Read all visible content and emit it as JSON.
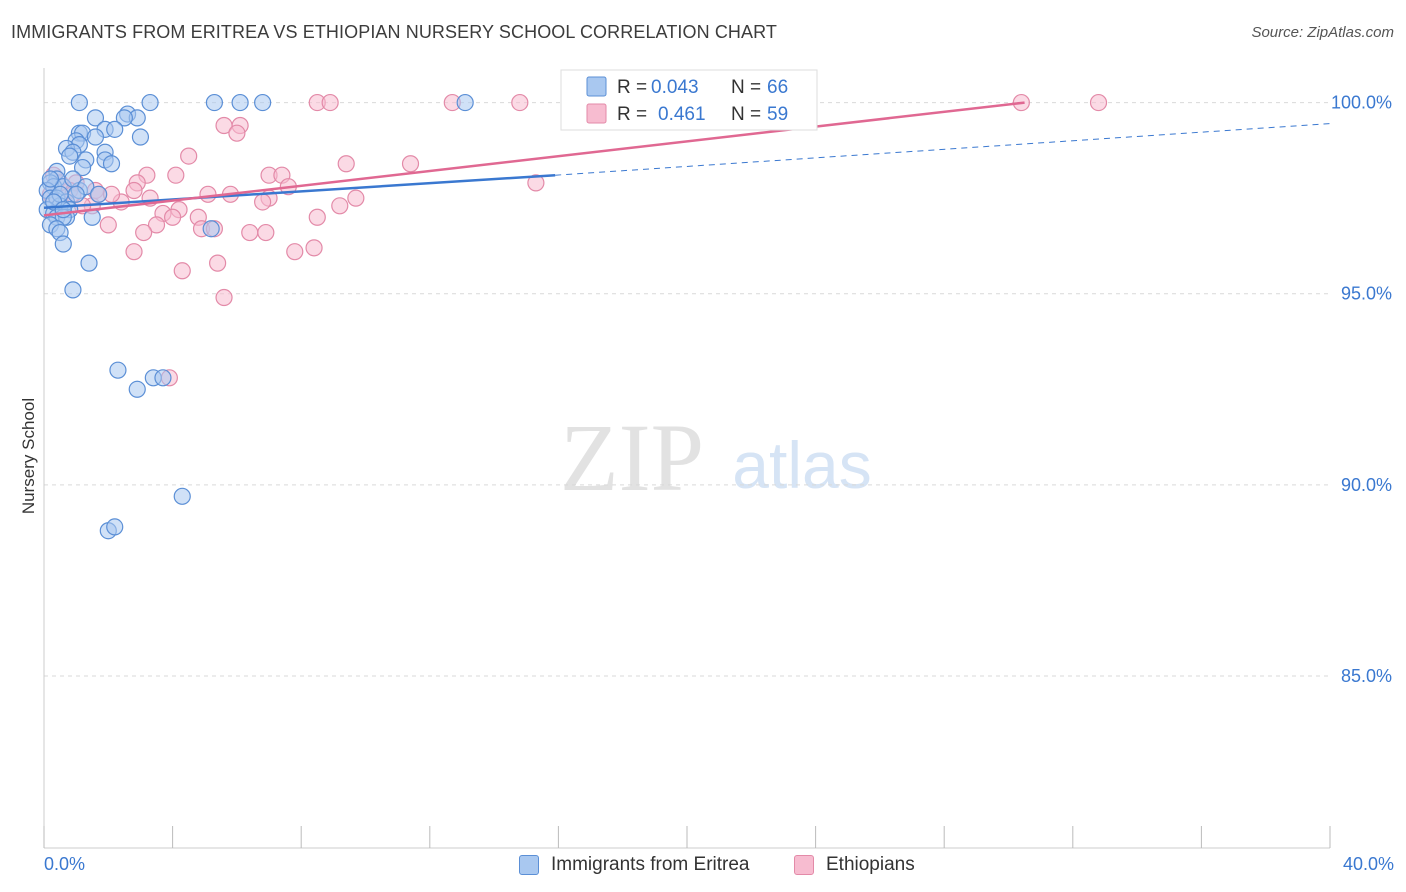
{
  "header": {
    "title": "IMMIGRANTS FROM ERITREA VS ETHIOPIAN NURSERY SCHOOL CORRELATION CHART",
    "source": "Source: ZipAtlas.com"
  },
  "watermark": {
    "zip": "ZIP",
    "atlas": "atlas"
  },
  "colors": {
    "blue_fill": "#a9c8f0",
    "blue_stroke": "#5b8fd6",
    "blue_line": "#3a78d0",
    "pink_fill": "#f7bcd0",
    "pink_stroke": "#e38aa8",
    "pink_line": "#e06892",
    "tick_label": "#3a78d0",
    "grid": "#d9d9d9"
  },
  "stats": [
    {
      "r_label": "R = ",
      "r_value": "0.043",
      "n_label": "N = ",
      "n_value": "66"
    },
    {
      "r_label": "R = ",
      "r_value": "0.461",
      "n_label": "N = ",
      "n_value": "59"
    }
  ],
  "chart_data": {
    "type": "scatter",
    "title": "IMMIGRANTS FROM ERITREA VS ETHIOPIAN NURSERY SCHOOL CORRELATION CHART",
    "xlabel": "",
    "ylabel": "Nursery School",
    "xlim": [
      0,
      40
    ],
    "ylim": [
      80.5,
      100.8
    ],
    "x_tick_labels": [
      "0.0%",
      "40.0%"
    ],
    "y_ticks": [
      100,
      95,
      90,
      85
    ],
    "y_tick_labels": [
      "100.0%",
      "95.0%",
      "90.0%",
      "85.0%"
    ],
    "grid": true,
    "legend_position": "bottom-center",
    "series": [
      {
        "name": "Immigrants from Eritrea",
        "color": "#a9c8f0",
        "r": 0.043,
        "n": 66,
        "trend": {
          "x": [
            0,
            15.9
          ],
          "y": [
            97.25,
            98.1
          ]
        },
        "trend_extension": {
          "x": [
            15.9,
            40
          ],
          "y": [
            98.1,
            99.45
          ]
        },
        "points": [
          [
            1.1,
            100.0
          ],
          [
            3.3,
            100.0
          ],
          [
            5.3,
            100.0
          ],
          [
            6.1,
            100.0
          ],
          [
            6.8,
            100.0
          ],
          [
            13.1,
            100.0
          ],
          [
            2.6,
            99.7
          ],
          [
            2.9,
            99.6
          ],
          [
            1.6,
            99.6
          ],
          [
            2.5,
            99.6
          ],
          [
            1.9,
            99.3
          ],
          [
            2.2,
            99.3
          ],
          [
            1.1,
            99.2
          ],
          [
            1.2,
            99.2
          ],
          [
            1.6,
            99.1
          ],
          [
            3.0,
            99.1
          ],
          [
            1.0,
            99.0
          ],
          [
            1.1,
            98.9
          ],
          [
            0.7,
            98.8
          ],
          [
            0.9,
            98.7
          ],
          [
            1.9,
            98.7
          ],
          [
            0.8,
            98.6
          ],
          [
            1.3,
            98.5
          ],
          [
            1.9,
            98.5
          ],
          [
            2.1,
            98.4
          ],
          [
            1.2,
            98.3
          ],
          [
            0.4,
            98.2
          ],
          [
            0.4,
            98.0
          ],
          [
            0.2,
            97.9
          ],
          [
            0.3,
            97.8
          ],
          [
            0.6,
            97.8
          ],
          [
            1.1,
            97.7
          ],
          [
            0.1,
            97.7
          ],
          [
            0.2,
            97.5
          ],
          [
            0.4,
            97.5
          ],
          [
            0.7,
            97.4
          ],
          [
            0.5,
            97.3
          ],
          [
            0.1,
            97.2
          ],
          [
            0.8,
            97.2
          ],
          [
            0.3,
            97.1
          ],
          [
            0.4,
            97.0
          ],
          [
            0.7,
            97.0
          ],
          [
            1.5,
            97.0
          ],
          [
            0.6,
            97.0
          ],
          [
            0.2,
            96.8
          ],
          [
            0.4,
            96.7
          ],
          [
            0.5,
            96.6
          ],
          [
            0.6,
            96.3
          ],
          [
            5.2,
            96.7
          ],
          [
            1.4,
            95.8
          ],
          [
            0.9,
            95.1
          ],
          [
            2.3,
            93.0
          ],
          [
            3.4,
            92.8
          ],
          [
            3.7,
            92.8
          ],
          [
            2.9,
            92.5
          ],
          [
            4.3,
            89.7
          ],
          [
            2.0,
            88.8
          ],
          [
            2.2,
            88.9
          ],
          [
            0.9,
            98.0
          ],
          [
            1.3,
            97.8
          ],
          [
            0.5,
            97.6
          ],
          [
            1.7,
            97.6
          ],
          [
            0.3,
            97.4
          ],
          [
            0.6,
            97.2
          ],
          [
            0.2,
            98.0
          ],
          [
            1.0,
            97.6
          ]
        ]
      },
      {
        "name": "Ethiopians",
        "color": "#f7bcd0",
        "r": 0.461,
        "n": 59,
        "trend": {
          "x": [
            0,
            30.5
          ],
          "y": [
            97.05,
            100.0
          ]
        },
        "points": [
          [
            8.5,
            100.0
          ],
          [
            8.9,
            100.0
          ],
          [
            12.7,
            100.0
          ],
          [
            14.8,
            100.0
          ],
          [
            20.8,
            100.0
          ],
          [
            30.4,
            100.0
          ],
          [
            32.8,
            100.0
          ],
          [
            5.6,
            99.4
          ],
          [
            6.1,
            99.4
          ],
          [
            6.0,
            99.2
          ],
          [
            4.5,
            98.6
          ],
          [
            9.4,
            98.4
          ],
          [
            11.4,
            98.4
          ],
          [
            3.2,
            98.1
          ],
          [
            4.1,
            98.1
          ],
          [
            7.0,
            98.1
          ],
          [
            7.4,
            98.1
          ],
          [
            2.9,
            97.9
          ],
          [
            7.6,
            97.8
          ],
          [
            1.0,
            97.9
          ],
          [
            1.6,
            97.7
          ],
          [
            2.8,
            97.7
          ],
          [
            0.8,
            97.7
          ],
          [
            5.1,
            97.6
          ],
          [
            5.8,
            97.6
          ],
          [
            7.0,
            97.5
          ],
          [
            9.7,
            97.5
          ],
          [
            3.3,
            97.5
          ],
          [
            2.4,
            97.4
          ],
          [
            1.5,
            97.3
          ],
          [
            1.2,
            97.3
          ],
          [
            9.2,
            97.3
          ],
          [
            4.2,
            97.2
          ],
          [
            3.7,
            97.1
          ],
          [
            8.5,
            97.0
          ],
          [
            4.8,
            97.0
          ],
          [
            2.0,
            96.8
          ],
          [
            3.5,
            96.8
          ],
          [
            4.9,
            96.7
          ],
          [
            5.3,
            96.7
          ],
          [
            6.4,
            96.6
          ],
          [
            6.9,
            96.6
          ],
          [
            3.1,
            96.6
          ],
          [
            8.4,
            96.2
          ],
          [
            7.8,
            96.1
          ],
          [
            2.8,
            96.1
          ],
          [
            5.4,
            95.8
          ],
          [
            4.3,
            95.6
          ],
          [
            5.6,
            94.9
          ],
          [
            3.9,
            92.8
          ],
          [
            0.3,
            98.1
          ],
          [
            0.5,
            97.9
          ],
          [
            0.2,
            97.6
          ],
          [
            0.9,
            97.6
          ],
          [
            1.7,
            97.6
          ],
          [
            15.3,
            97.9
          ],
          [
            6.8,
            97.4
          ],
          [
            4.0,
            97.0
          ],
          [
            2.1,
            97.6
          ]
        ]
      }
    ]
  },
  "legend": {
    "items": [
      {
        "label": "Immigrants from Eritrea"
      },
      {
        "label": "Ethiopians"
      }
    ]
  }
}
